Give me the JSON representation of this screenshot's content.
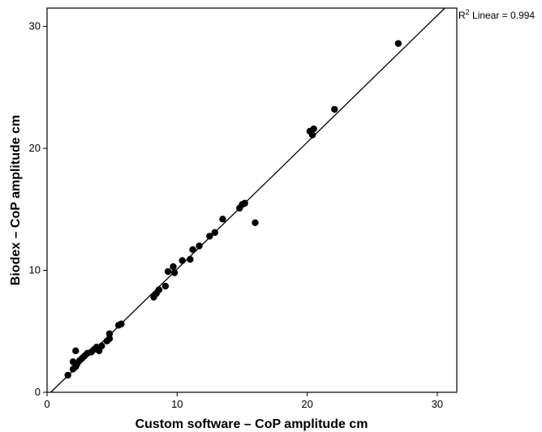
{
  "chart_data": {
    "type": "scatter",
    "xlabel": "Custom software – CoP amplitude cm",
    "ylabel": "Biodex – CoP amplitude cm",
    "xlim": [
      0,
      31.5
    ],
    "ylim": [
      0,
      31.5
    ],
    "xticks": [
      0,
      10,
      20,
      30
    ],
    "yticks": [
      0,
      10,
      20,
      30
    ],
    "tick_labels": [
      "0",
      "10",
      "20",
      "30"
    ],
    "grid": false,
    "legend": "none",
    "fit_line": {
      "type": "linear",
      "slope": 1.04,
      "intercept": -0.3
    },
    "r2_prefix": "R",
    "r2_sup": "2",
    "r2_text": " Linear = 0.994",
    "x": [
      1.6,
      2.0,
      2.2,
      2.3,
      2.5,
      2.7,
      2.9,
      3.1,
      3.4,
      3.6,
      3.8,
      4.0,
      4.2,
      2.2,
      2.0,
      4.6,
      4.8,
      4.8,
      5.5,
      5.7,
      8.2,
      8.4,
      8.6,
      9.1,
      9.3,
      9.7,
      9.8,
      10.4,
      11.0,
      11.2,
      11.7,
      12.5,
      12.9,
      13.5,
      14.8,
      15.0,
      15.2,
      16.0,
      20.2,
      20.4,
      20.5,
      22.1,
      27.0
    ],
    "y": [
      1.4,
      1.9,
      2.1,
      2.3,
      2.6,
      2.8,
      3.0,
      3.2,
      3.3,
      3.5,
      3.7,
      3.4,
      3.8,
      3.4,
      2.5,
      4.2,
      4.4,
      4.8,
      5.5,
      5.6,
      7.8,
      8.1,
      8.4,
      8.7,
      9.9,
      10.3,
      9.8,
      10.8,
      10.9,
      11.7,
      12.0,
      12.8,
      13.1,
      14.2,
      15.1,
      15.4,
      15.5,
      13.9,
      21.4,
      21.1,
      21.6,
      23.2,
      28.6
    ]
  }
}
